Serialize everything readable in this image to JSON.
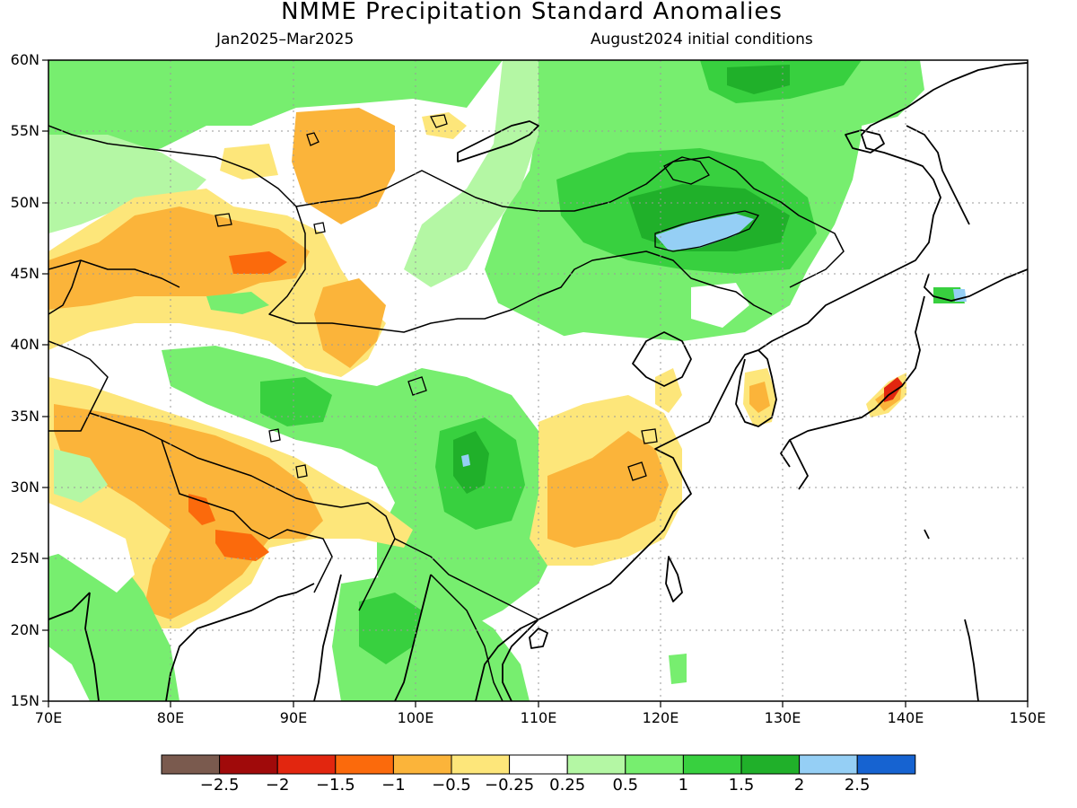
{
  "title": "NMME Precipitation Standard Anomalies",
  "subtitle_left": "Jan2025–Mar2025",
  "subtitle_right": "August2024 initial conditions",
  "map": {
    "lon_range": [
      70,
      150
    ],
    "lat_range": [
      15,
      60
    ],
    "lat_ticks": [
      "60N",
      "55N",
      "50N",
      "45N",
      "40N",
      "35N",
      "30N",
      "25N",
      "20N",
      "15N"
    ],
    "lon_ticks": [
      "70E",
      "80E",
      "90E",
      "100E",
      "110E",
      "120E",
      "130E",
      "140E",
      "150E"
    ],
    "grid": true
  },
  "colorbar": {
    "colors": [
      "#7a5a4e",
      "#a00a0a",
      "#e2260f",
      "#fb6a0c",
      "#fbb43a",
      "#fde67a",
      "#ffffff",
      "#b4f7a4",
      "#77ee6f",
      "#38d03f",
      "#20b02a",
      "#95cff5",
      "#1663d1"
    ],
    "labels": [
      "−2.5",
      "−2",
      "−1.5",
      "−1",
      "−0.5",
      "−0.25",
      "0.25",
      "0.5",
      "1",
      "1.5",
      "2",
      "2.5"
    ]
  }
}
